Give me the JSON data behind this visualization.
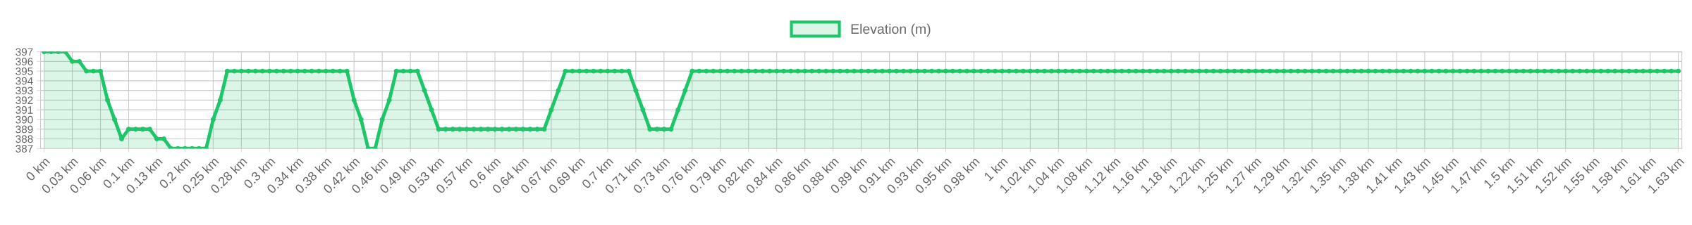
{
  "chart_data": {
    "type": "area",
    "categories": [
      "0 km",
      null,
      null,
      null,
      "0.03 km",
      null,
      null,
      null,
      "0.06 km",
      null,
      null,
      null,
      "0.1 km",
      null,
      null,
      null,
      "0.13 km",
      null,
      null,
      null,
      "0.2 km",
      null,
      null,
      null,
      "0.25 km",
      null,
      null,
      null,
      "0.28 km",
      null,
      null,
      null,
      "0.3 km",
      null,
      null,
      null,
      "0.34 km",
      null,
      null,
      null,
      "0.38 km",
      null,
      null,
      null,
      "0.42 km",
      null,
      null,
      null,
      "0.46 km",
      null,
      null,
      null,
      "0.49 km",
      null,
      null,
      null,
      "0.53 km",
      null,
      null,
      null,
      "0.57 km",
      null,
      null,
      null,
      "0.6 km",
      null,
      null,
      null,
      "0.64 km",
      null,
      null,
      null,
      "0.67 km",
      null,
      null,
      null,
      "0.69 km",
      null,
      null,
      null,
      "0.7 km",
      null,
      null,
      null,
      "0.71 km",
      null,
      null,
      null,
      "0.73 km",
      null,
      null,
      null,
      "0.76 km",
      null,
      null,
      null,
      "0.79 km",
      null,
      null,
      null,
      "0.82 km",
      null,
      null,
      null,
      "0.84 km",
      null,
      null,
      null,
      "0.86 km",
      null,
      null,
      null,
      "0.88 km",
      null,
      null,
      null,
      "0.89 km",
      null,
      null,
      null,
      "0.91 km",
      null,
      null,
      null,
      "0.93 km",
      null,
      null,
      null,
      "0.95 km",
      null,
      null,
      null,
      "0.98 km",
      null,
      null,
      null,
      "1 km",
      null,
      null,
      null,
      "1.02 km",
      null,
      null,
      null,
      "1.04 km",
      null,
      null,
      null,
      "1.08 km",
      null,
      null,
      null,
      "1.12 km",
      null,
      null,
      null,
      "1.16 km",
      null,
      null,
      null,
      "1.18 km",
      null,
      null,
      null,
      "1.22 km",
      null,
      null,
      null,
      "1.25 km",
      null,
      null,
      null,
      "1.27 km",
      null,
      null,
      null,
      "1.29 km",
      null,
      null,
      null,
      "1.32 km",
      null,
      null,
      null,
      "1.35 km",
      null,
      null,
      null,
      "1.38 km",
      null,
      null,
      null,
      "1.41 km",
      null,
      null,
      null,
      "1.43 km",
      null,
      null,
      null,
      "1.45 km",
      null,
      null,
      null,
      "1.47 km",
      null,
      null,
      null,
      "1.5 km",
      null,
      null,
      null,
      "1.51 km",
      null,
      null,
      null,
      "1.52 km",
      null,
      null,
      null,
      "1.55 km",
      null,
      null,
      null,
      "1.58 km",
      null,
      null,
      null,
      "1.61 km",
      null,
      null,
      null,
      "1.63 km"
    ],
    "series": [
      {
        "name": "Elevation (m)",
        "color": "#1ec66a",
        "values": [
          397,
          397,
          397,
          397,
          396,
          396,
          395,
          395,
          395,
          392,
          390,
          388,
          389,
          389,
          389,
          389,
          388,
          388,
          387,
          387,
          387,
          387,
          387,
          387,
          390,
          392,
          395,
          395,
          395,
          395,
          395,
          395,
          395,
          395,
          395,
          395,
          395,
          395,
          395,
          395,
          395,
          395,
          395,
          395,
          392,
          390,
          387,
          387,
          390,
          392,
          395,
          395,
          395,
          395,
          393,
          391,
          389,
          389,
          389,
          389,
          389,
          389,
          389,
          389,
          389,
          389,
          389,
          389,
          389,
          389,
          389,
          389,
          391,
          393,
          395,
          395,
          395,
          395,
          395,
          395,
          395,
          395,
          395,
          395,
          393,
          391,
          389,
          389,
          389,
          389,
          391,
          393,
          395,
          395,
          395,
          395,
          395,
          395,
          395,
          395,
          395,
          395,
          395,
          395,
          395,
          395,
          395,
          395,
          395,
          395,
          395,
          395,
          395,
          395,
          395,
          395,
          395,
          395,
          395,
          395,
          395,
          395,
          395,
          395,
          395,
          395,
          395,
          395,
          395,
          395,
          395,
          395,
          395,
          395,
          395,
          395,
          395,
          395,
          395,
          395,
          395,
          395,
          395,
          395,
          395,
          395,
          395,
          395,
          395,
          395,
          395,
          395,
          395,
          395,
          395,
          395,
          395,
          395,
          395,
          395,
          395,
          395,
          395,
          395,
          395,
          395,
          395,
          395,
          395,
          395,
          395,
          395,
          395,
          395,
          395,
          395,
          395,
          395,
          395,
          395,
          395,
          395,
          395,
          395,
          395,
          395,
          395,
          395,
          395,
          395,
          395,
          395,
          395,
          395,
          395,
          395,
          395,
          395,
          395,
          395,
          395,
          395,
          395,
          395,
          395,
          395,
          395,
          395,
          395,
          395,
          395,
          395,
          395,
          395,
          395,
          395,
          395,
          395,
          395,
          395,
          395,
          395,
          395,
          395,
          395,
          395,
          395,
          395,
          395,
          395,
          395,
          395,
          395
        ]
      }
    ],
    "ylim": [
      387,
      397
    ],
    "yticks": [
      387,
      388,
      389,
      390,
      391,
      392,
      393,
      394,
      395,
      396,
      397
    ],
    "grid": true,
    "legend": "top",
    "marker": "circle"
  }
}
